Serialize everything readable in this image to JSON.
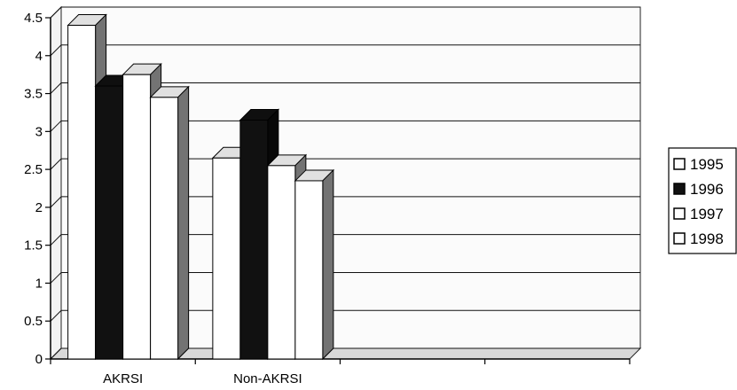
{
  "chart_data": {
    "type": "bar",
    "style": "3d-clustered",
    "categories": [
      "AKRSI",
      "Non-AKRSI"
    ],
    "series": [
      {
        "name": "1995",
        "values": [
          4.4,
          2.65
        ],
        "color": "#ffffff"
      },
      {
        "name": "1996",
        "values": [
          3.6,
          3.15
        ],
        "color": "#111111"
      },
      {
        "name": "1997",
        "values": [
          3.75,
          2.55
        ],
        "color": "#ffffff"
      },
      {
        "name": "1998",
        "values": [
          3.45,
          2.35
        ],
        "color": "#ffffff"
      }
    ],
    "yticks": [
      "0",
      "0.5",
      "1",
      "1.5",
      "2",
      "2.5",
      "3",
      "3.5",
      "4",
      "4.5"
    ],
    "ylim": [
      0,
      4.5
    ],
    "grid": true,
    "legend_position": "right",
    "title": "",
    "xlabel": "",
    "ylabel": ""
  }
}
